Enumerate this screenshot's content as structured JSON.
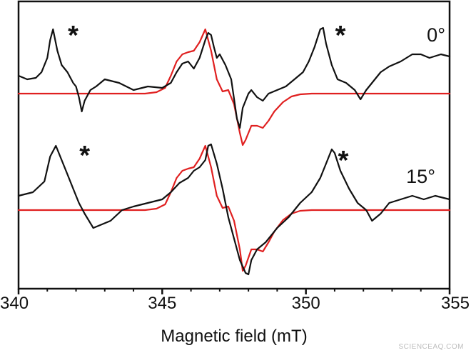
{
  "chart_data": {
    "type": "line",
    "xlabel": "Magnetic field (mT)",
    "ylabel": "",
    "xlim": [
      340,
      355
    ],
    "xticks": [
      "340",
      "345",
      "350",
      "355"
    ],
    "yticks_shown": false,
    "grid": false,
    "panels": [
      {
        "label": "0°",
        "markers": [
          "*",
          "*"
        ],
        "marker_x": [
          341.9,
          351.2
        ],
        "series": [
          {
            "name": "",
            "color": "#111111",
            "x": [
              340.0,
              340.3,
              340.6,
              340.8,
              341.0,
              341.1,
              341.2,
              341.35,
              341.5,
              341.7,
              341.9,
              342.0,
              342.1,
              342.2,
              342.3,
              342.5,
              342.7,
              343.0,
              343.5,
              344.0,
              344.5,
              345.0,
              345.3,
              345.5,
              345.7,
              345.9,
              346.1,
              346.3,
              346.5,
              346.6,
              346.7,
              346.8,
              346.9,
              347.0,
              347.2,
              347.4,
              347.6,
              347.7,
              347.8,
              348.0,
              348.1,
              348.3,
              348.5,
              348.7,
              349.0,
              349.3,
              349.6,
              349.9,
              350.1,
              350.3,
              350.5,
              350.6,
              350.7,
              350.9,
              351.1,
              351.4,
              351.7,
              351.9,
              352.1,
              352.3,
              352.6,
              352.9,
              353.3,
              353.7,
              354.0,
              354.3,
              354.7,
              355.0
            ],
            "y": [
              0.25,
              0.2,
              0.22,
              0.3,
              0.5,
              0.75,
              0.9,
              0.6,
              0.4,
              0.3,
              0.15,
              0.1,
              -0.05,
              -0.25,
              -0.1,
              0.05,
              0.1,
              0.2,
              0.15,
              0.05,
              0.1,
              0.08,
              0.15,
              0.3,
              0.42,
              0.45,
              0.35,
              0.5,
              0.75,
              0.85,
              0.82,
              0.65,
              0.5,
              0.55,
              0.4,
              0.2,
              -0.35,
              -0.48,
              -0.2,
              0.0,
              0.05,
              -0.05,
              -0.1,
              0.0,
              0.05,
              0.1,
              0.2,
              0.3,
              0.45,
              0.65,
              0.9,
              0.92,
              0.7,
              0.4,
              0.2,
              0.15,
              0.05,
              -0.08,
              0.05,
              0.15,
              0.3,
              0.38,
              0.45,
              0.55,
              0.55,
              0.5,
              0.55,
              0.52
            ]
          },
          {
            "name": "",
            "color": "#e02020",
            "x": [
              340.0,
              344.4,
              344.8,
              345.1,
              345.3,
              345.5,
              345.7,
              345.9,
              346.1,
              346.3,
              346.5,
              346.7,
              346.9,
              347.1,
              347.3,
              347.5,
              347.7,
              347.8,
              347.9,
              348.1,
              348.3,
              348.5,
              348.7,
              348.9,
              349.2,
              349.5,
              349.8,
              350.2,
              355.0
            ],
            "y": [
              0.0,
              0.0,
              0.02,
              0.08,
              0.25,
              0.45,
              0.55,
              0.58,
              0.6,
              0.72,
              0.9,
              0.6,
              0.2,
              0.03,
              0.05,
              -0.15,
              -0.55,
              -0.72,
              -0.65,
              -0.45,
              -0.45,
              -0.48,
              -0.38,
              -0.25,
              -0.12,
              -0.04,
              -0.01,
              0.0,
              0.0
            ]
          }
        ]
      },
      {
        "label": "15°",
        "markers": [
          "*",
          "*"
        ],
        "marker_x": [
          342.3,
          351.3
        ],
        "series": [
          {
            "name": "",
            "color": "#111111",
            "x": [
              340.0,
              340.5,
              340.9,
              341.1,
              341.3,
              341.5,
              341.7,
              341.9,
              342.1,
              342.3,
              342.6,
              342.9,
              343.2,
              343.6,
              344.0,
              344.5,
              345.0,
              345.3,
              345.6,
              345.9,
              346.1,
              346.3,
              346.5,
              346.6,
              346.7,
              346.9,
              347.1,
              347.3,
              347.5,
              347.7,
              347.9,
              348.0,
              348.1,
              348.3,
              348.6,
              349.0,
              349.4,
              349.8,
              350.2,
              350.5,
              350.7,
              350.9,
              351.0,
              351.2,
              351.5,
              351.8,
              352.1,
              352.3,
              352.6,
              352.9,
              353.3,
              353.7,
              354.1,
              354.5,
              355.0
            ],
            "y": [
              0.2,
              0.25,
              0.4,
              0.75,
              0.9,
              0.7,
              0.5,
              0.3,
              0.1,
              -0.05,
              -0.25,
              -0.2,
              -0.15,
              0.0,
              0.05,
              0.1,
              0.15,
              0.25,
              0.38,
              0.45,
              0.55,
              0.6,
              0.7,
              0.9,
              0.92,
              0.65,
              0.3,
              -0.1,
              -0.4,
              -0.7,
              -0.88,
              -0.9,
              -0.7,
              -0.55,
              -0.45,
              -0.25,
              -0.1,
              0.1,
              0.25,
              0.45,
              0.65,
              0.85,
              0.8,
              0.55,
              0.3,
              0.1,
              0.0,
              -0.15,
              -0.05,
              0.1,
              0.15,
              0.2,
              0.15,
              0.2,
              0.15
            ]
          },
          {
            "name": "",
            "color": "#e02020",
            "x": [
              340.0,
              344.4,
              344.8,
              345.1,
              345.3,
              345.5,
              345.7,
              345.9,
              346.1,
              346.3,
              346.5,
              346.7,
              346.9,
              347.1,
              347.3,
              347.5,
              347.7,
              347.8,
              347.9,
              348.1,
              348.3,
              348.5,
              348.7,
              348.9,
              349.2,
              349.5,
              349.8,
              350.2,
              355.0
            ],
            "y": [
              0.0,
              0.0,
              0.02,
              0.08,
              0.25,
              0.45,
              0.55,
              0.58,
              0.6,
              0.72,
              0.9,
              0.6,
              0.2,
              0.03,
              0.05,
              -0.15,
              -0.55,
              -0.85,
              -0.78,
              -0.55,
              -0.55,
              -0.58,
              -0.45,
              -0.3,
              -0.14,
              -0.05,
              -0.01,
              0.0,
              0.0
            ]
          }
        ]
      }
    ]
  },
  "watermark": "SCIENCEAQ.COM"
}
